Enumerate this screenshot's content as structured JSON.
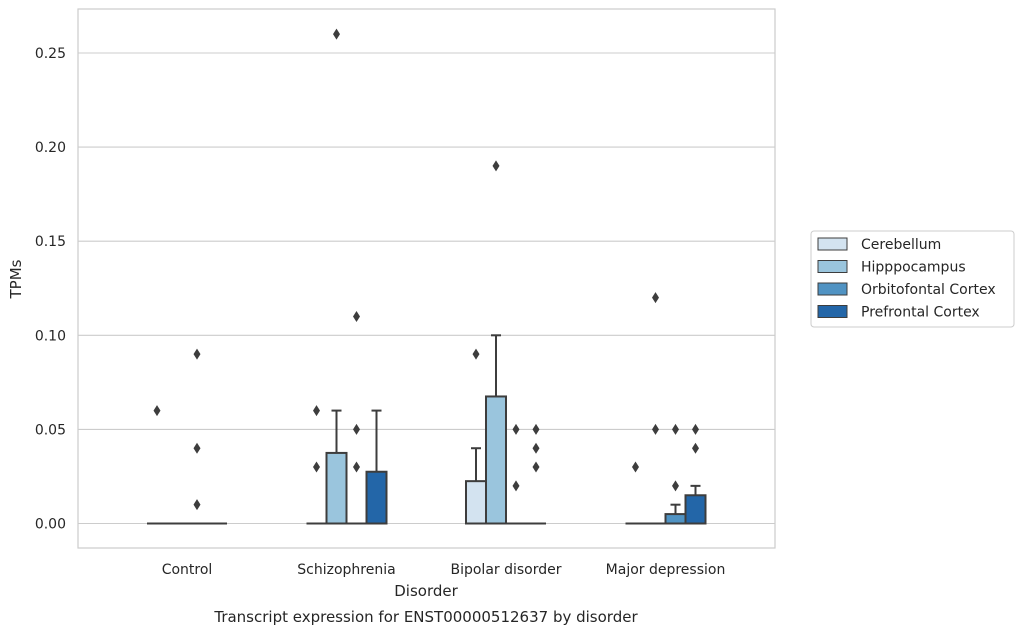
{
  "chart_data": {
    "type": "box",
    "title": "",
    "caption": "Transcript expression for ENST00000512637 by disorder",
    "xlabel": "Disorder",
    "ylabel": "TPMs",
    "ylim": [
      -0.0125,
      0.2735
    ],
    "yticks": [
      0.0,
      0.05,
      0.1,
      0.15,
      0.2,
      0.25
    ],
    "ytick_labels": [
      "0.00",
      "0.05",
      "0.10",
      "0.15",
      "0.20",
      "0.25"
    ],
    "categories": [
      "Control",
      "Schizophrenia",
      "Bipolar disorder",
      "Major depression"
    ],
    "grid": true,
    "legend_position": "right",
    "series": [
      {
        "name": "Cerebellum",
        "color": "#d3e3f0",
        "boxes": [
          {
            "q1": 0,
            "median": 0,
            "q3": 0,
            "whisker_low": 0,
            "whisker_high": 0,
            "outliers": [
              0.06
            ]
          },
          {
            "q1": 0,
            "median": 0,
            "q3": 0,
            "whisker_low": 0,
            "whisker_high": 0,
            "outliers": [
              0.03,
              0.06
            ]
          },
          {
            "q1": 0,
            "median": 0,
            "q3": 0.0225,
            "whisker_low": 0,
            "whisker_high": 0.04,
            "outliers": [
              0.09
            ]
          },
          {
            "q1": 0,
            "median": 0,
            "q3": 0,
            "whisker_low": 0,
            "whisker_high": 0,
            "outliers": [
              0.03
            ]
          }
        ]
      },
      {
        "name": "Hipppocampus",
        "color": "#9ac5dd",
        "boxes": [
          {
            "q1": 0,
            "median": 0,
            "q3": 0,
            "whisker_low": 0,
            "whisker_high": 0,
            "outliers": []
          },
          {
            "q1": 0,
            "median": 0,
            "q3": 0.0375,
            "whisker_low": 0,
            "whisker_high": 0.06,
            "outliers": [
              0.26
            ]
          },
          {
            "q1": 0,
            "median": 0,
            "q3": 0.0675,
            "whisker_low": 0,
            "whisker_high": 0.1,
            "outliers": [
              0.19
            ]
          },
          {
            "q1": 0,
            "median": 0,
            "q3": 0,
            "whisker_low": 0,
            "whisker_high": 0,
            "outliers": [
              0.05,
              0.12
            ]
          }
        ]
      },
      {
        "name": "Orbitofontal Cortex",
        "color": "#5093c3",
        "boxes": [
          {
            "q1": 0,
            "median": 0,
            "q3": 0,
            "whisker_low": 0,
            "whisker_high": 0,
            "outliers": [
              0.01,
              0.04,
              0.09
            ]
          },
          {
            "q1": 0,
            "median": 0,
            "q3": 0,
            "whisker_low": 0,
            "whisker_high": 0,
            "outliers": [
              0.03,
              0.05,
              0.11
            ]
          },
          {
            "q1": 0,
            "median": 0,
            "q3": 0,
            "whisker_low": 0,
            "whisker_high": 0,
            "outliers": [
              0.02,
              0.05
            ]
          },
          {
            "q1": 0,
            "median": 0,
            "q3": 0.005,
            "whisker_low": 0,
            "whisker_high": 0.01,
            "outliers": [
              0.02,
              0.05
            ]
          }
        ]
      },
      {
        "name": "Prefrontal Cortex",
        "color": "#2366a8",
        "boxes": [
          {
            "q1": 0,
            "median": 0,
            "q3": 0,
            "whisker_low": 0,
            "whisker_high": 0,
            "outliers": []
          },
          {
            "q1": 0,
            "median": 0,
            "q3": 0.0275,
            "whisker_low": 0,
            "whisker_high": 0.06,
            "outliers": []
          },
          {
            "q1": 0,
            "median": 0,
            "q3": 0,
            "whisker_low": 0,
            "whisker_high": 0,
            "outliers": [
              0.03,
              0.04,
              0.05
            ]
          },
          {
            "q1": 0,
            "median": 0,
            "q3": 0.015,
            "whisker_low": 0,
            "whisker_high": 0.02,
            "outliers": [
              0.04,
              0.05
            ]
          }
        ]
      }
    ]
  }
}
